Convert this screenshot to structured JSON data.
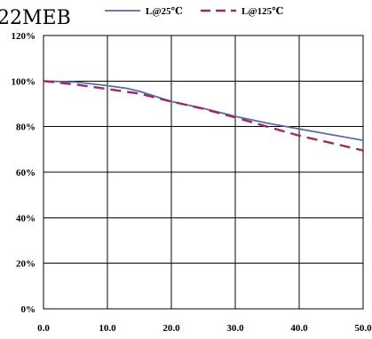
{
  "chart_data": {
    "type": "line",
    "title": "22MEB",
    "xlabel": "",
    "ylabel": "",
    "xlim": [
      0,
      50
    ],
    "ylim": [
      0,
      120
    ],
    "grid": true,
    "legend_position": "top",
    "x_ticks": [
      "0.0",
      "10.0",
      "20.0",
      "30.0",
      "40.0",
      "50.0"
    ],
    "y_ticks": [
      "0%",
      "20%",
      "40%",
      "60%",
      "80%",
      "100%",
      "120%"
    ],
    "series": [
      {
        "name": "L@25℃",
        "color": "#5b6aa8",
        "style": "solid",
        "x": [
          0,
          5,
          10,
          13,
          15,
          20,
          25,
          30,
          35,
          40,
          45,
          50
        ],
        "y": [
          100,
          99.6,
          98,
          96.8,
          95.5,
          91,
          88,
          84.5,
          81.5,
          79,
          76.5,
          74
        ]
      },
      {
        "name": "L@125℃",
        "color": "#9b2b5e",
        "style": "dashed",
        "x": [
          0,
          5,
          10,
          15,
          20,
          25,
          30,
          35,
          40,
          45,
          50
        ],
        "y": [
          100,
          98.5,
          96.5,
          94.5,
          91,
          87.8,
          84,
          80,
          76,
          72.8,
          69.5
        ]
      }
    ]
  }
}
